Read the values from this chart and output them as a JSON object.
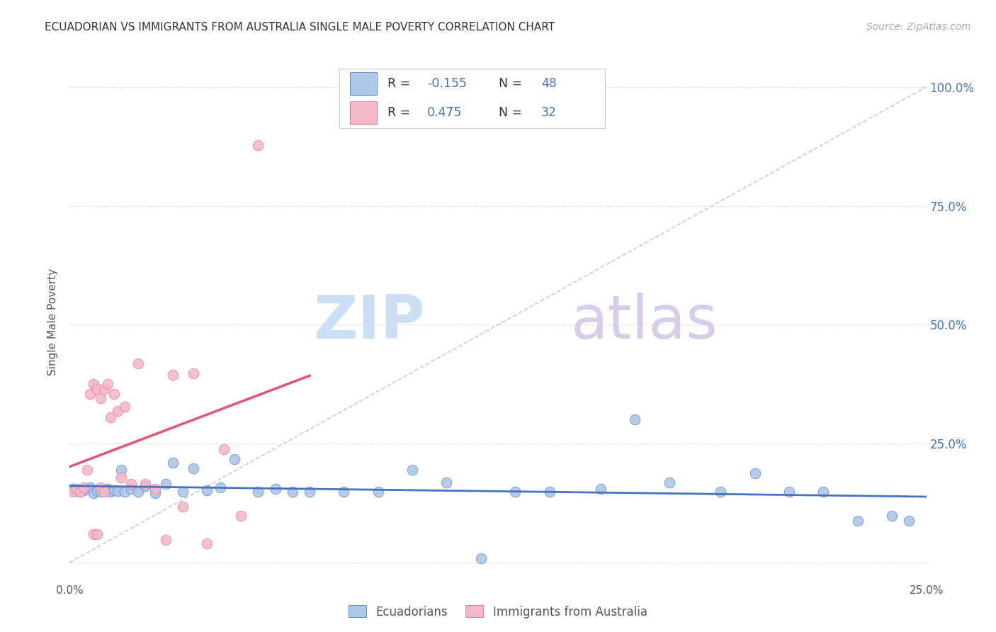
{
  "title": "ECUADORIAN VS IMMIGRANTS FROM AUSTRALIA SINGLE MALE POVERTY CORRELATION CHART",
  "source": "Source: ZipAtlas.com",
  "ylabel": "Single Male Poverty",
  "xlim": [
    0.0,
    0.25
  ],
  "ylim": [
    -0.04,
    1.05
  ],
  "ytick_positions": [
    0.0,
    0.25,
    0.5,
    0.75,
    1.0
  ],
  "ytick_labels": [
    "",
    "25.0%",
    "50.0%",
    "75.0%",
    "100.0%"
  ],
  "xtick_positions": [
    0.0,
    0.05,
    0.1,
    0.15,
    0.2,
    0.25
  ],
  "xtick_labels": [
    "0.0%",
    "",
    "",
    "",
    "",
    "25.0%"
  ],
  "color_blue_fill": "#aec6e8",
  "color_blue_edge": "#5b8fcc",
  "color_pink_fill": "#f5b8c8",
  "color_pink_edge": "#e08098",
  "color_blue_line": "#4472c4",
  "color_pink_line": "#e05570",
  "color_label": "#4472c4",
  "color_grid": "#e0e0e0",
  "color_diag": "#cccccc",
  "watermark_zip_color": "#cce0f5",
  "watermark_atlas_color": "#d8cce8",
  "r_blue": -0.155,
  "n_blue": 48,
  "r_pink": 0.475,
  "n_pink": 32,
  "blue_x": [
    0.001,
    0.002,
    0.003,
    0.004,
    0.005,
    0.006,
    0.007,
    0.008,
    0.009,
    0.01,
    0.011,
    0.012,
    0.013,
    0.014,
    0.015,
    0.016,
    0.018,
    0.02,
    0.022,
    0.025,
    0.028,
    0.03,
    0.033,
    0.036,
    0.04,
    0.044,
    0.048,
    0.055,
    0.06,
    0.065,
    0.07,
    0.08,
    0.09,
    0.1,
    0.11,
    0.12,
    0.13,
    0.14,
    0.155,
    0.165,
    0.175,
    0.19,
    0.2,
    0.21,
    0.22,
    0.23,
    0.24,
    0.245
  ],
  "blue_y": [
    0.155,
    0.15,
    0.148,
    0.152,
    0.155,
    0.158,
    0.145,
    0.15,
    0.148,
    0.152,
    0.155,
    0.148,
    0.152,
    0.15,
    0.195,
    0.148,
    0.155,
    0.148,
    0.16,
    0.145,
    0.165,
    0.21,
    0.148,
    0.198,
    0.152,
    0.158,
    0.218,
    0.148,
    0.155,
    0.148,
    0.148,
    0.148,
    0.148,
    0.195,
    0.168,
    0.008,
    0.148,
    0.148,
    0.155,
    0.3,
    0.168,
    0.148,
    0.188,
    0.148,
    0.148,
    0.088,
    0.098,
    0.088
  ],
  "pink_x": [
    0.001,
    0.002,
    0.003,
    0.004,
    0.005,
    0.006,
    0.007,
    0.007,
    0.008,
    0.008,
    0.009,
    0.009,
    0.01,
    0.01,
    0.011,
    0.012,
    0.013,
    0.014,
    0.015,
    0.016,
    0.018,
    0.02,
    0.022,
    0.025,
    0.028,
    0.03,
    0.033,
    0.036,
    0.04,
    0.045,
    0.05,
    0.055
  ],
  "pink_y": [
    0.148,
    0.155,
    0.148,
    0.158,
    0.195,
    0.355,
    0.375,
    0.06,
    0.365,
    0.06,
    0.345,
    0.158,
    0.365,
    0.148,
    0.375,
    0.305,
    0.355,
    0.318,
    0.178,
    0.328,
    0.165,
    0.418,
    0.165,
    0.155,
    0.048,
    0.395,
    0.118,
    0.398,
    0.04,
    0.238,
    0.098,
    0.878
  ]
}
